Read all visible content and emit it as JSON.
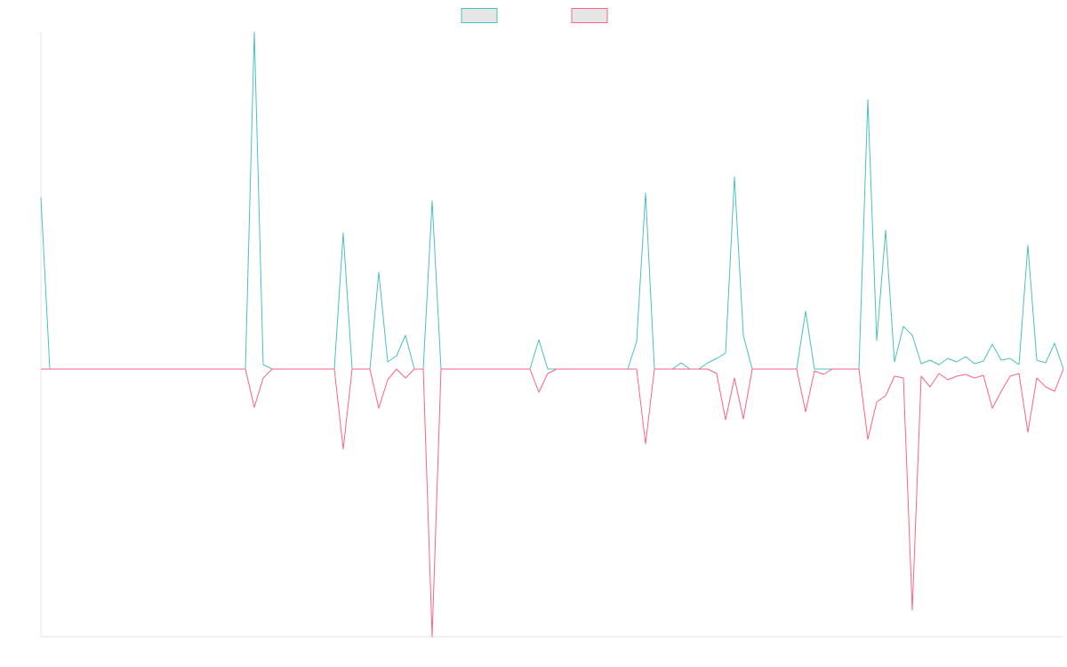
{
  "chart_data": {
    "type": "line",
    "ylim": [
      -301,
      379
    ],
    "series": [
      {
        "color": "#4bc0c0",
        "values": [
          193,
          0,
          0,
          0,
          0,
          0,
          0,
          0,
          0,
          0,
          0,
          0,
          0,
          0,
          0,
          0,
          0,
          0,
          0,
          0,
          0,
          0,
          0,
          0,
          379,
          5,
          0,
          0,
          0,
          0,
          0,
          0,
          0,
          0,
          153,
          0,
          0,
          0,
          109,
          8,
          15,
          38,
          0,
          0,
          189,
          0,
          0,
          0,
          0,
          0,
          0,
          0,
          0,
          0,
          0,
          0,
          33,
          0,
          0,
          0,
          0,
          0,
          0,
          0,
          0,
          0,
          0,
          31,
          198,
          0,
          0,
          0,
          7,
          0,
          0,
          7,
          12,
          18,
          216,
          38,
          0,
          0,
          0,
          0,
          0,
          0,
          65,
          0,
          0,
          0,
          0,
          0,
          0,
          303,
          32,
          156,
          8,
          48,
          38,
          6,
          10,
          5,
          12,
          8,
          14,
          6,
          9,
          28,
          10,
          12,
          5,
          139,
          10,
          7,
          29,
          0
        ]
      },
      {
        "color": "#ff6384",
        "values": [
          0,
          0,
          0,
          0,
          0,
          0,
          0,
          0,
          0,
          0,
          0,
          0,
          0,
          0,
          0,
          0,
          0,
          0,
          0,
          0,
          0,
          0,
          0,
          0,
          -43,
          -10,
          0,
          0,
          0,
          0,
          0,
          0,
          0,
          0,
          -90,
          0,
          0,
          0,
          -44,
          -12,
          0,
          -10,
          0,
          0,
          -301,
          0,
          0,
          0,
          0,
          0,
          0,
          0,
          0,
          0,
          0,
          0,
          -26,
          -5,
          0,
          0,
          0,
          0,
          0,
          0,
          0,
          0,
          0,
          0,
          -84,
          0,
          0,
          0,
          0,
          0,
          0,
          0,
          -5,
          -57,
          -10,
          -56,
          0,
          0,
          0,
          0,
          0,
          0,
          -48,
          -2,
          -6,
          0,
          0,
          0,
          0,
          -79,
          -37,
          -30,
          -8,
          -10,
          -271,
          -8,
          -20,
          -5,
          -12,
          -8,
          -6,
          -10,
          -7,
          -44,
          -25,
          -8,
          -5,
          -71,
          -10,
          -20,
          -25,
          0
        ]
      }
    ]
  }
}
